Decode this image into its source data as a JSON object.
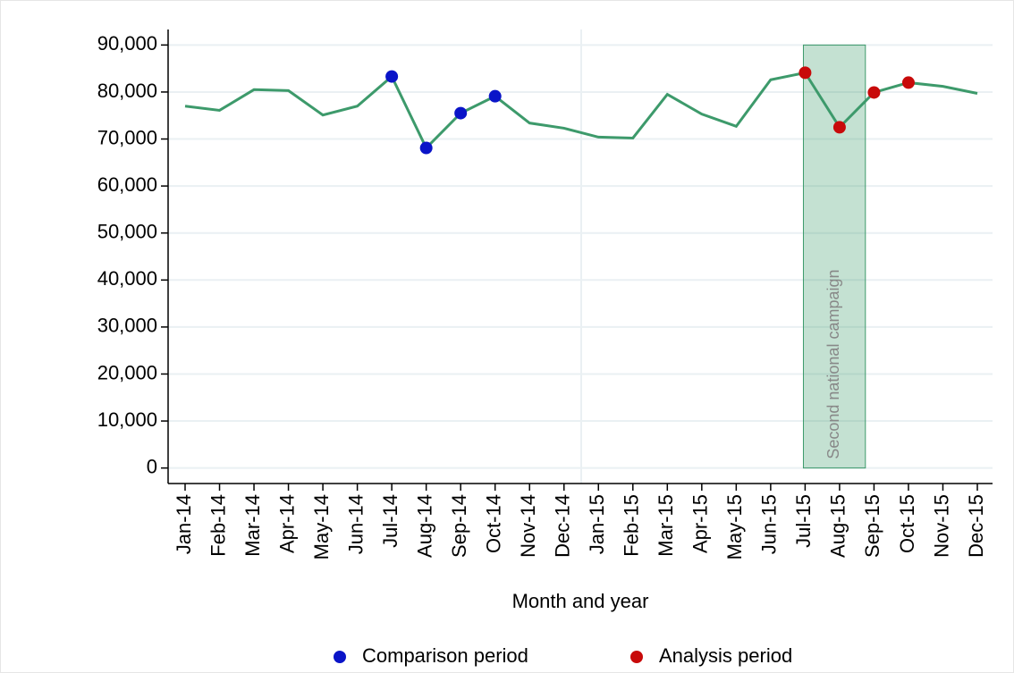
{
  "chart_data": {
    "type": "line",
    "x_label": "Month and year",
    "categories": [
      "Jan-14",
      "Feb-14",
      "Mar-14",
      "Apr-14",
      "May-14",
      "Jun-14",
      "Jul-14",
      "Aug-14",
      "Sep-14",
      "Oct-14",
      "Nov-14",
      "Dec-14",
      "Jan-15",
      "Feb-15",
      "Mar-15",
      "Apr-15",
      "May-15",
      "Jun-15",
      "Jul-15",
      "Aug-15",
      "Sep-15",
      "Oct-15",
      "Nov-15",
      "Dec-15"
    ],
    "values": [
      77000,
      76100,
      80500,
      80300,
      75100,
      77000,
      83300,
      68100,
      75500,
      79100,
      73400,
      72300,
      70400,
      70200,
      79500,
      75300,
      72700,
      82600,
      84100,
      72500,
      79900,
      82000,
      81200,
      79700
    ],
    "color": "#3d9a6b",
    "series": [
      {
        "name": "Comparison period",
        "color": "#0a14c8",
        "values": [
          null,
          null,
          null,
          null,
          null,
          null,
          83300,
          68100,
          75500,
          79100,
          null,
          null,
          null,
          null,
          null,
          null,
          null,
          null,
          null,
          null,
          null,
          null,
          null,
          null
        ]
      },
      {
        "name": "Analysis period",
        "color": "#c80a0a",
        "values": [
          null,
          null,
          null,
          null,
          null,
          null,
          null,
          null,
          null,
          null,
          null,
          null,
          null,
          null,
          null,
          null,
          null,
          null,
          84100,
          72500,
          79900,
          82000,
          null,
          null
        ]
      }
    ],
    "shade": {
      "label": "Second national campaign",
      "x": [
        17.95,
        19.75
      ],
      "y": [
        0,
        90000
      ],
      "color": "#3d9a6b"
    },
    "vline": 11.5,
    "ylim": [
      -3300,
      93300
    ],
    "yticks": [
      0,
      {
        "value": 10000,
        "label": "10,000"
      },
      {
        "value": 20000,
        "label": "20,000"
      },
      {
        "value": 30000,
        "label": "30,000"
      },
      {
        "value": 40000,
        "label": "40,000"
      },
      {
        "value": 50000,
        "label": "50,000"
      },
      {
        "value": 60000,
        "label": "60,000"
      },
      {
        "value": 70000,
        "label": "70,000"
      },
      {
        "value": 80000,
        "label": "80,000"
      },
      {
        "value": 90000,
        "label": "90,000"
      }
    ],
    "grid": true
  }
}
